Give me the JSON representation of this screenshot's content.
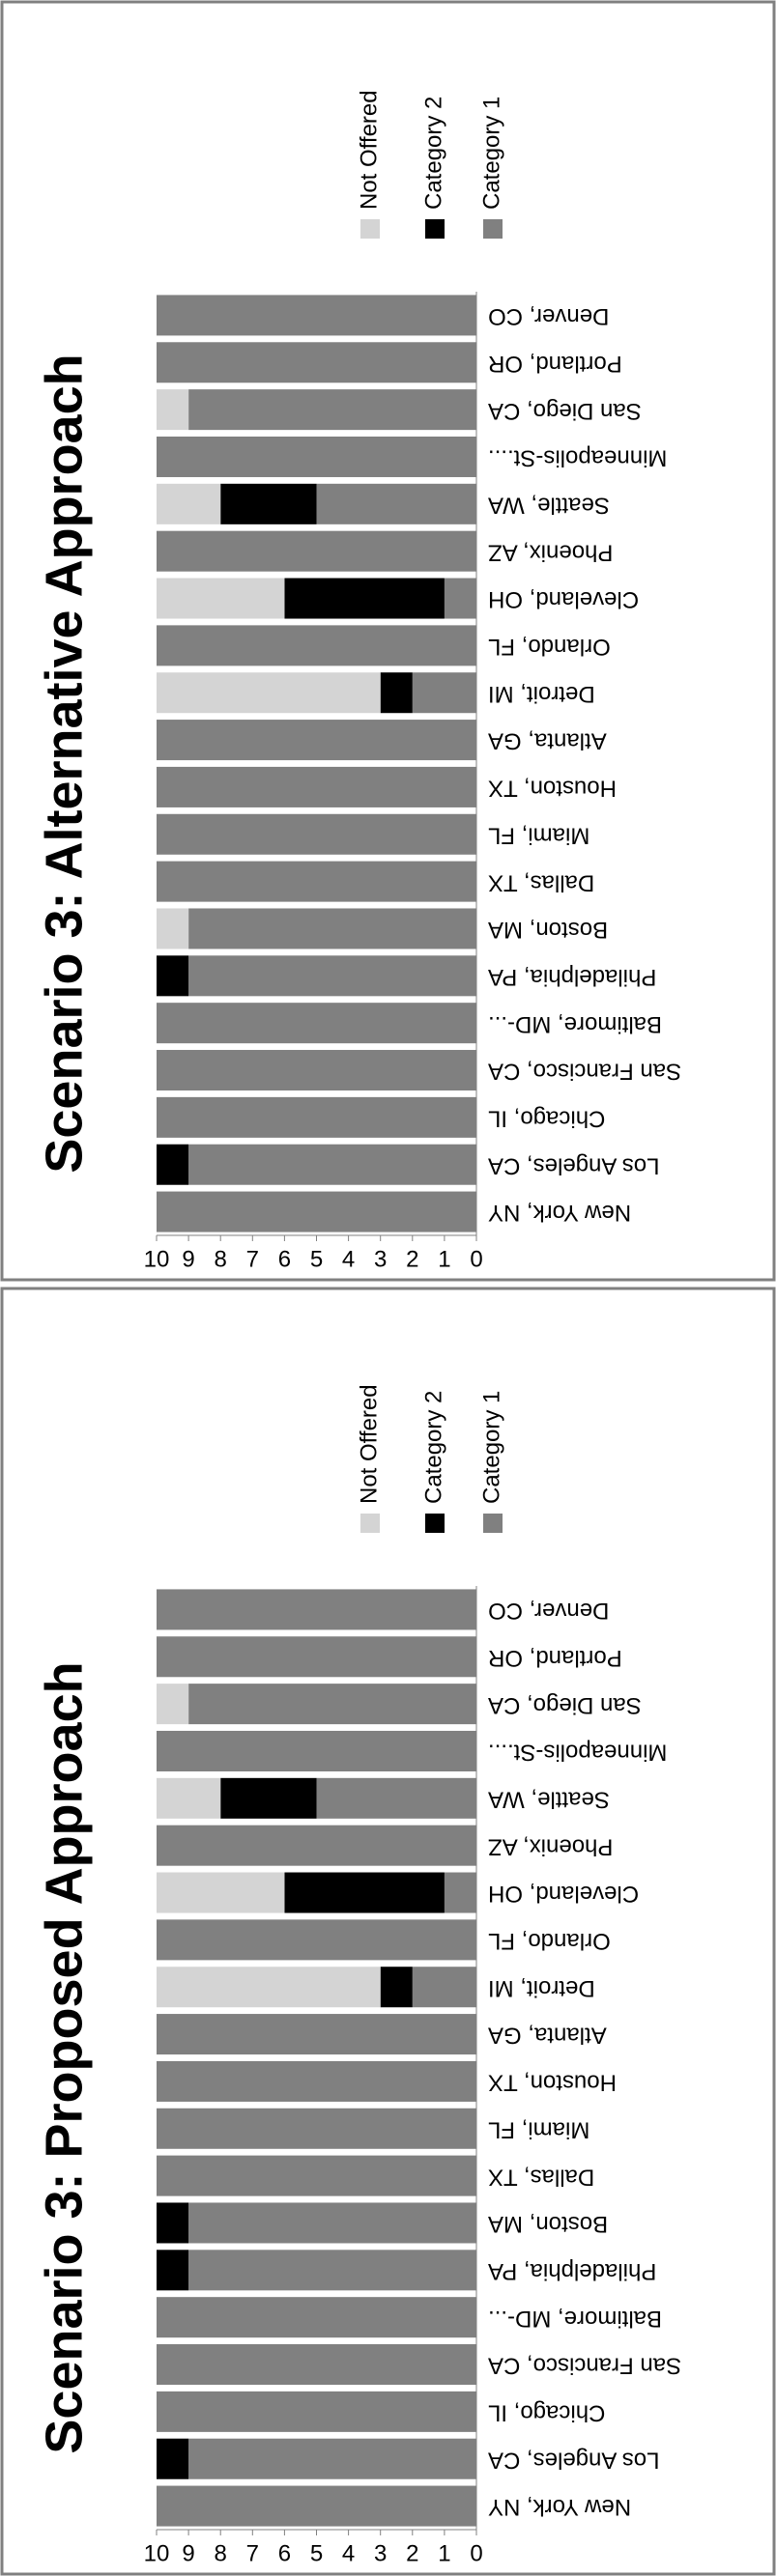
{
  "chart_data": [
    {
      "type": "stacked_bar",
      "title": "Scenario 3: Alternative Approach",
      "categories": [
        "New York, NY",
        "Los Angeles, CA",
        "Chicago, IL",
        "San Francisco, CA",
        "Baltimore, MD-...",
        "Philadelphia, PA",
        "Boston, MA",
        "Dallas, TX",
        "Miami, FL",
        "Houston, TX",
        "Atlanta, GA",
        "Detroit, MI",
        "Orlando, FL",
        "Cleveland, OH",
        "Phoenix, AZ",
        "Seattle, WA",
        "Minneapolis-St....",
        "San Diego, CA",
        "Portland, OR",
        "Denver, CO"
      ],
      "series": [
        {
          "name": "Category 1",
          "color": "#808080",
          "values": [
            10,
            9,
            10,
            10,
            10,
            9,
            9,
            10,
            10,
            10,
            10,
            2,
            10,
            1,
            10,
            5,
            10,
            9,
            10,
            10
          ]
        },
        {
          "name": "Category 2",
          "color": "#000000",
          "values": [
            0,
            1,
            0,
            0,
            0,
            1,
            0,
            0,
            0,
            0,
            0,
            1,
            0,
            5,
            0,
            3,
            0,
            0,
            0,
            0
          ]
        },
        {
          "name": "Not Offered",
          "color": "#d4d4d4",
          "values": [
            0,
            0,
            0,
            0,
            0,
            0,
            1,
            0,
            0,
            0,
            0,
            7,
            0,
            4,
            0,
            2,
            0,
            1,
            0,
            0
          ]
        }
      ],
      "ylim": [
        0,
        10
      ],
      "yticks": [
        0,
        1,
        2,
        3,
        4,
        5,
        6,
        7,
        8,
        9,
        10
      ],
      "legend": "right"
    },
    {
      "type": "stacked_bar",
      "title": "Scenario 3: Proposed Approach",
      "categories": [
        "New York, NY",
        "Los Angeles, CA",
        "Chicago, IL",
        "San Francisco, CA",
        "Baltimore, MD-...",
        "Philadelphia, PA",
        "Boston, MA",
        "Dallas, TX",
        "Miami, FL",
        "Houston, TX",
        "Atlanta, GA",
        "Detroit, MI",
        "Orlando, FL",
        "Cleveland, OH",
        "Phoenix, AZ",
        "Seattle, WA",
        "Minneapolis-St....",
        "San Diego, CA",
        "Portland, OR",
        "Denver, CO"
      ],
      "series": [
        {
          "name": "Category 1",
          "color": "#808080",
          "values": [
            10,
            9,
            10,
            10,
            10,
            9,
            9,
            10,
            10,
            10,
            10,
            2,
            10,
            1,
            10,
            5,
            10,
            9,
            10,
            10
          ]
        },
        {
          "name": "Category 2",
          "color": "#000000",
          "values": [
            0,
            1,
            0,
            0,
            0,
            1,
            1,
            0,
            0,
            0,
            0,
            1,
            0,
            5,
            0,
            3,
            0,
            0,
            0,
            0
          ]
        },
        {
          "name": "Not Offered",
          "color": "#d4d4d4",
          "values": [
            0,
            0,
            0,
            0,
            0,
            0,
            0,
            0,
            0,
            0,
            0,
            7,
            0,
            4,
            0,
            2,
            0,
            1,
            0,
            0
          ]
        }
      ],
      "ylim": [
        0,
        10
      ],
      "yticks": [
        0,
        1,
        2,
        3,
        4,
        5,
        6,
        7,
        8,
        9,
        10
      ],
      "legend": "right"
    }
  ]
}
